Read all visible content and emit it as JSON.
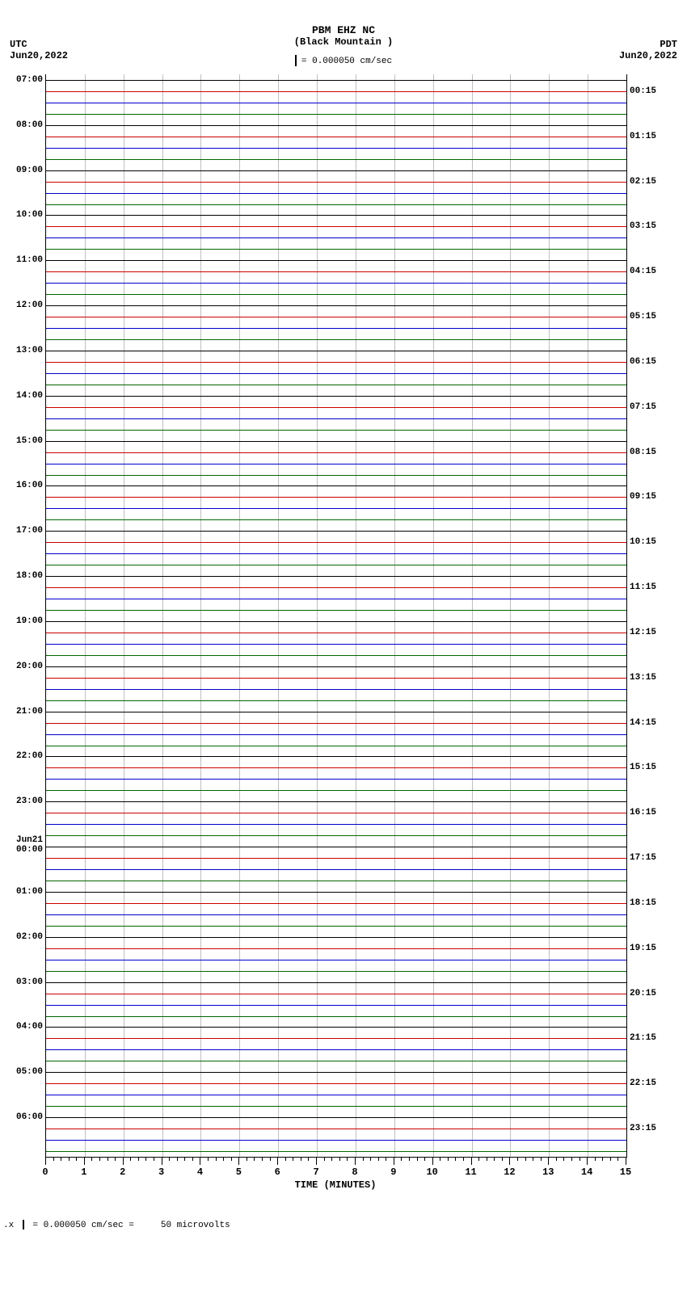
{
  "header": {
    "station": "PBM EHZ NC",
    "location": "(Black Mountain )",
    "scale_note": "= 0.000050 cm/sec"
  },
  "timezones": {
    "left_tz": "UTC",
    "left_date": "Jun20,2022",
    "right_tz": "PDT",
    "right_date": "Jun20,2022"
  },
  "plot": {
    "type": "helicorder",
    "background_color": "#ffffff",
    "grid_color": "#bfbfbf",
    "trace_colors": [
      "#000000",
      "#cc0000",
      "#0000cc",
      "#006600"
    ],
    "n_traces": 96,
    "x_minutes": 15,
    "x_minor_per_major": 5,
    "left_labels": [
      {
        "idx": 0,
        "text": "07:00"
      },
      {
        "idx": 4,
        "text": "08:00"
      },
      {
        "idx": 8,
        "text": "09:00"
      },
      {
        "idx": 12,
        "text": "10:00"
      },
      {
        "idx": 16,
        "text": "11:00"
      },
      {
        "idx": 20,
        "text": "12:00"
      },
      {
        "idx": 24,
        "text": "13:00"
      },
      {
        "idx": 28,
        "text": "14:00"
      },
      {
        "idx": 32,
        "text": "15:00"
      },
      {
        "idx": 36,
        "text": "16:00"
      },
      {
        "idx": 40,
        "text": "17:00"
      },
      {
        "idx": 44,
        "text": "18:00"
      },
      {
        "idx": 48,
        "text": "19:00"
      },
      {
        "idx": 52,
        "text": "20:00"
      },
      {
        "idx": 56,
        "text": "21:00"
      },
      {
        "idx": 60,
        "text": "22:00"
      },
      {
        "idx": 64,
        "text": "23:00"
      },
      {
        "idx": 68,
        "text": "Jun21\n00:00"
      },
      {
        "idx": 72,
        "text": "01:00"
      },
      {
        "idx": 76,
        "text": "02:00"
      },
      {
        "idx": 80,
        "text": "03:00"
      },
      {
        "idx": 84,
        "text": "04:00"
      },
      {
        "idx": 88,
        "text": "05:00"
      },
      {
        "idx": 92,
        "text": "06:00"
      }
    ],
    "right_labels": [
      {
        "idx": 1,
        "text": "00:15"
      },
      {
        "idx": 5,
        "text": "01:15"
      },
      {
        "idx": 9,
        "text": "02:15"
      },
      {
        "idx": 13,
        "text": "03:15"
      },
      {
        "idx": 17,
        "text": "04:15"
      },
      {
        "idx": 21,
        "text": "05:15"
      },
      {
        "idx": 25,
        "text": "06:15"
      },
      {
        "idx": 29,
        "text": "07:15"
      },
      {
        "idx": 33,
        "text": "08:15"
      },
      {
        "idx": 37,
        "text": "09:15"
      },
      {
        "idx": 41,
        "text": "10:15"
      },
      {
        "idx": 45,
        "text": "11:15"
      },
      {
        "idx": 49,
        "text": "12:15"
      },
      {
        "idx": 53,
        "text": "13:15"
      },
      {
        "idx": 57,
        "text": "14:15"
      },
      {
        "idx": 61,
        "text": "15:15"
      },
      {
        "idx": 65,
        "text": "16:15"
      },
      {
        "idx": 69,
        "text": "17:15"
      },
      {
        "idx": 73,
        "text": "18:15"
      },
      {
        "idx": 77,
        "text": "19:15"
      },
      {
        "idx": 81,
        "text": "20:15"
      },
      {
        "idx": 85,
        "text": "21:15"
      },
      {
        "idx": 89,
        "text": "22:15"
      },
      {
        "idx": 93,
        "text": "23:15"
      }
    ],
    "xaxis_title": "TIME (MINUTES)"
  },
  "footer": {
    "text_left": "= 0.000050 cm/sec =",
    "text_right": "50 microvolts"
  }
}
